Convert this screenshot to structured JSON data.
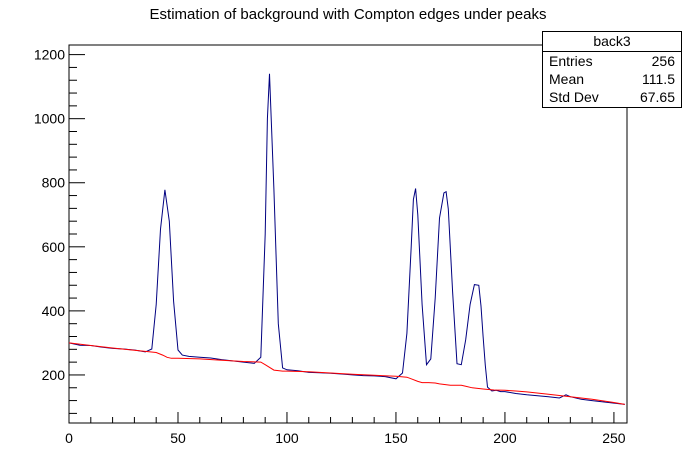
{
  "chart_data": {
    "type": "line",
    "title": "Estimation of background with Compton edges under peaks",
    "xlim": [
      0,
      256
    ],
    "ylim": [
      50,
      1230
    ],
    "x_ticks": [
      "0",
      "50",
      "100",
      "150",
      "200",
      "250"
    ],
    "y_ticks": [
      "200",
      "400",
      "600",
      "800",
      "1000",
      "1200"
    ],
    "grid": false,
    "series": [
      {
        "color": "#000080",
        "x": [
          0,
          5,
          10,
          15,
          20,
          25,
          30,
          35,
          38,
          40,
          42,
          44,
          46,
          48,
          50,
          52,
          55,
          60,
          65,
          70,
          75,
          80,
          85,
          88,
          90,
          91,
          92,
          94,
          96,
          98,
          100,
          105,
          110,
          115,
          120,
          125,
          130,
          135,
          140,
          145,
          150,
          153,
          155,
          157,
          158,
          159,
          160,
          162,
          164,
          166,
          168,
          170,
          172,
          173,
          174,
          176,
          178,
          180,
          182,
          184,
          186,
          188,
          189,
          190,
          191,
          192,
          194,
          196,
          198,
          200,
          205,
          210,
          215,
          220,
          225,
          228,
          230,
          235,
          240,
          245,
          250,
          255
        ],
        "y": [
          300,
          293,
          292,
          287,
          283,
          281,
          278,
          272,
          281,
          420,
          655,
          778,
          680,
          430,
          278,
          262,
          258,
          255,
          253,
          248,
          244,
          240,
          236,
          255,
          640,
          1000,
          1140,
          780,
          360,
          222,
          216,
          213,
          208,
          207,
          205,
          203,
          200,
          198,
          197,
          195,
          188,
          206,
          330,
          600,
          748,
          782,
          700,
          420,
          232,
          250,
          440,
          690,
          768,
          772,
          718,
          460,
          235,
          232,
          310,
          420,
          482,
          480,
          415,
          320,
          230,
          162,
          150,
          152,
          148,
          148,
          142,
          138,
          135,
          132,
          128,
          138,
          132,
          124,
          120,
          116,
          112,
          108
        ]
      },
      {
        "color": "#ff0000",
        "x": [
          0,
          10,
          20,
          30,
          40,
          43,
          45,
          47,
          50,
          60,
          70,
          80,
          88,
          90,
          94,
          98,
          100,
          110,
          120,
          130,
          140,
          150,
          155,
          157,
          160,
          162,
          165,
          168,
          170,
          175,
          180,
          182,
          185,
          190,
          195,
          200,
          205,
          210,
          220,
          230,
          240,
          250,
          255
        ],
        "y": [
          300,
          292,
          284,
          277,
          270,
          262,
          255,
          252,
          252,
          250,
          246,
          242,
          240,
          232,
          215,
          212,
          212,
          210,
          206,
          202,
          199,
          196,
          193,
          188,
          180,
          176,
          176,
          175,
          172,
          168,
          168,
          165,
          160,
          156,
          153,
          152,
          150,
          147,
          140,
          132,
          124,
          114,
          108
        ]
      }
    ],
    "stats": {
      "title": "back3",
      "rows": [
        {
          "label": "Entries",
          "value": "256"
        },
        {
          "label": "Mean",
          "value": "111.5"
        },
        {
          "label": "Std Dev",
          "value": "67.65"
        }
      ]
    }
  }
}
